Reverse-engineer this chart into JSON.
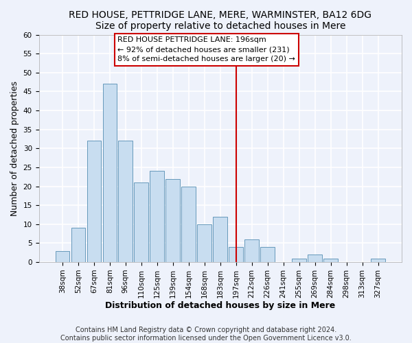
{
  "title": "RED HOUSE, PETTRIDGE LANE, MERE, WARMINSTER, BA12 6DG",
  "subtitle": "Size of property relative to detached houses in Mere",
  "xlabel": "Distribution of detached houses by size in Mere",
  "ylabel": "Number of detached properties",
  "bar_labels": [
    "38sqm",
    "52sqm",
    "67sqm",
    "81sqm",
    "96sqm",
    "110sqm",
    "125sqm",
    "139sqm",
    "154sqm",
    "168sqm",
    "183sqm",
    "197sqm",
    "212sqm",
    "226sqm",
    "241sqm",
    "255sqm",
    "269sqm",
    "284sqm",
    "298sqm",
    "313sqm",
    "327sqm"
  ],
  "bar_values": [
    3,
    9,
    32,
    47,
    32,
    21,
    24,
    22,
    20,
    10,
    12,
    4,
    6,
    4,
    0,
    1,
    2,
    1,
    0,
    0,
    1
  ],
  "bar_color": "#c8ddf0",
  "bar_edge_color": "#6699bb",
  "vline_index": 11,
  "vline_color": "#cc0000",
  "ylim": [
    0,
    60
  ],
  "yticks": [
    0,
    5,
    10,
    15,
    20,
    25,
    30,
    35,
    40,
    45,
    50,
    55,
    60
  ],
  "annotation_title": "RED HOUSE PETTRIDGE LANE: 196sqm",
  "annotation_line1": "← 92% of detached houses are smaller (231)",
  "annotation_line2": "8% of semi-detached houses are larger (20) →",
  "footer1": "Contains HM Land Registry data © Crown copyright and database right 2024.",
  "footer2": "Contains public sector information licensed under the Open Government Licence v3.0.",
  "background_color": "#eef2fb",
  "grid_color": "#ffffff",
  "title_fontsize": 10,
  "subtitle_fontsize": 9.5,
  "axis_label_fontsize": 9,
  "tick_fontsize": 7.5,
  "annotation_fontsize": 8,
  "footer_fontsize": 7
}
